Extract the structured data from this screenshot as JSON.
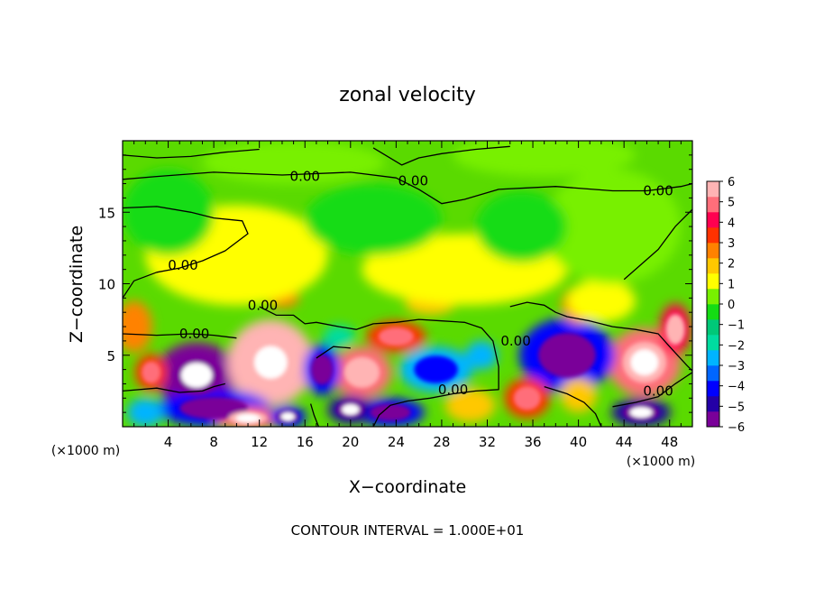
{
  "chart_data": {
    "type": "heatmap",
    "title": "zonal velocity",
    "xlabel": "X−coordinate",
    "ylabel": "Z−coordinate",
    "x_units_left": "(×1000 m)",
    "x_units_right": "(×1000 m)",
    "xlim": [
      0,
      50
    ],
    "ylim": [
      0,
      20
    ],
    "x_ticks": [
      4,
      8,
      12,
      16,
      20,
      24,
      28,
      32,
      36,
      40,
      44,
      48
    ],
    "x_tick_labels": [
      "4",
      "8",
      "12",
      "16",
      "20",
      "24",
      "28",
      "32",
      "36",
      "40",
      "44",
      "48"
    ],
    "y_ticks": [
      5,
      10,
      15
    ],
    "y_tick_labels": [
      "5",
      "10",
      "15"
    ],
    "colorbar": {
      "min": -6,
      "max": 6,
      "tick_labels": [
        "6",
        "5",
        "4",
        "3",
        "2",
        "1",
        "0",
        "−1",
        "−2",
        "−3",
        "−4",
        "−5",
        "−6"
      ],
      "tick_values": [
        6,
        5,
        4,
        3,
        2,
        1,
        0,
        -1,
        -2,
        -3,
        -4,
        -5,
        -6
      ],
      "colors": [
        "#7a0099",
        "#2400a6",
        "#0000ff",
        "#0066ff",
        "#00b4ff",
        "#00dca0",
        "#00c878",
        "#14dc14",
        "#78f000",
        "#ffff00",
        "#ffc800",
        "#ff8200",
        "#ff3200",
        "#ff0050",
        "#ff6e7a",
        "#ffb4b4"
      ]
    },
    "contour_labels": [
      {
        "text": "0.00",
        "x": 16.0,
        "y": 17.5
      },
      {
        "text": "0.00",
        "x": 25.5,
        "y": 17.2
      },
      {
        "text": "0.00",
        "x": 47.0,
        "y": 16.5
      },
      {
        "text": "0.00",
        "x": 5.3,
        "y": 11.3
      },
      {
        "text": "0.00",
        "x": 12.3,
        "y": 8.5
      },
      {
        "text": "0.00",
        "x": 6.3,
        "y": 6.5
      },
      {
        "text": "0.00",
        "x": 29.0,
        "y": 2.6
      },
      {
        "text": "0.00",
        "x": 47.0,
        "y": 2.5
      },
      {
        "text": "0.00",
        "x": 34.5,
        "y": 6.0
      }
    ],
    "anomalies": [
      {
        "x": 6.5,
        "y": 3.6,
        "rx": 3.6,
        "ry": 2.3,
        "v": -5.5,
        "core": true
      },
      {
        "x": 13.0,
        "y": 4.5,
        "rx": 3.8,
        "ry": 3.0,
        "v": 5.5,
        "core": true
      },
      {
        "x": 21.0,
        "y": 3.8,
        "rx": 2.6,
        "ry": 1.8,
        "v": 4.5
      },
      {
        "x": 27.5,
        "y": 4.0,
        "rx": 3.2,
        "ry": 1.6,
        "v": -3.0
      },
      {
        "x": 45.8,
        "y": 4.5,
        "rx": 3.2,
        "ry": 2.4,
        "v": 5.0,
        "core": true
      },
      {
        "x": 39.0,
        "y": 5.0,
        "rx": 4.2,
        "ry": 2.6,
        "v": -3.8
      },
      {
        "x": 40.0,
        "y": 8.5,
        "rx": 1.5,
        "ry": 1.3,
        "v": 2.8
      },
      {
        "x": 8.0,
        "y": 1.3,
        "rx": 5.0,
        "ry": 1.3,
        "v": -4.5
      },
      {
        "x": 2.5,
        "y": 3.8,
        "rx": 1.4,
        "ry": 1.3,
        "v": 3.6
      },
      {
        "x": 1.0,
        "y": 7.0,
        "rx": 1.6,
        "ry": 1.8,
        "v": 2.8
      },
      {
        "x": 17.5,
        "y": 4.0,
        "rx": 1.6,
        "ry": 1.8,
        "v": -4.0
      },
      {
        "x": 24.0,
        "y": 6.3,
        "rx": 2.6,
        "ry": 1.1,
        "v": 3.0
      },
      {
        "x": 14.0,
        "y": 9.0,
        "rx": 1.5,
        "ry": 0.7,
        "v": 2.4
      },
      {
        "x": 27.0,
        "y": 8.6,
        "rx": 2.2,
        "ry": 0.8,
        "v": 2.0
      },
      {
        "x": 35.5,
        "y": 2.0,
        "rx": 2.0,
        "ry": 1.4,
        "v": 3.2
      },
      {
        "x": 23.5,
        "y": 1.0,
        "rx": 3.0,
        "ry": 1.0,
        "v": -4.0
      },
      {
        "x": 45.5,
        "y": 1.0,
        "rx": 2.6,
        "ry": 1.0,
        "v": -5.2,
        "core": true
      },
      {
        "x": 30.5,
        "y": 1.5,
        "rx": 2.2,
        "ry": 1.2,
        "v": 1.6
      },
      {
        "x": 2.0,
        "y": 1.0,
        "rx": 1.6,
        "ry": 1.0,
        "v": -2.5
      },
      {
        "x": 48.5,
        "y": 6.8,
        "rx": 1.4,
        "ry": 1.8,
        "v": 4.0
      },
      {
        "x": 20.0,
        "y": 1.2,
        "rx": 2.0,
        "ry": 1.0,
        "v": -5.0,
        "core": true
      },
      {
        "x": 11.0,
        "y": 0.6,
        "rx": 2.8,
        "ry": 0.8,
        "v": 5.0,
        "core": true
      },
      {
        "x": 14.5,
        "y": 0.7,
        "rx": 1.6,
        "ry": 0.8,
        "v": -4.5,
        "core": true
      },
      {
        "x": 40.0,
        "y": 2.2,
        "rx": 1.6,
        "ry": 1.2,
        "v": 2.0
      },
      {
        "x": 19.0,
        "y": 6.3,
        "rx": 1.4,
        "ry": 0.8,
        "v": -2.2
      },
      {
        "x": 31.5,
        "y": 5.0,
        "rx": 1.4,
        "ry": 1.0,
        "v": -2.6
      },
      {
        "x": 42.0,
        "y": 8.8,
        "rx": 3.0,
        "ry": 1.5,
        "v": 1.2
      },
      {
        "x": 10.0,
        "y": 12.0,
        "rx": 8.0,
        "ry": 3.5,
        "v": 1.0
      },
      {
        "x": 30.0,
        "y": 11.0,
        "rx": 9.0,
        "ry": 2.5,
        "v": 0.8
      },
      {
        "x": 43.0,
        "y": 14.0,
        "rx": 6.0,
        "ry": 4.0,
        "v": 0.5
      },
      {
        "x": 15.0,
        "y": 18.5,
        "rx": 8.0,
        "ry": 1.5,
        "v": 0.6
      },
      {
        "x": 37.0,
        "y": 19.0,
        "rx": 8.0,
        "ry": 1.5,
        "v": 0.5
      },
      {
        "x": 4.0,
        "y": 15.0,
        "rx": 4.0,
        "ry": 3.0,
        "v": -0.4
      },
      {
        "x": 22.0,
        "y": 14.5,
        "rx": 6.0,
        "ry": 2.5,
        "v": -0.3
      },
      {
        "x": 35.0,
        "y": 14.0,
        "rx": 4.0,
        "ry": 2.5,
        "v": -0.5
      }
    ],
    "contour_paths": [
      [
        [
          0,
          17.3
        ],
        [
          3,
          17.5
        ],
        [
          8,
          17.8
        ],
        [
          14,
          17.6
        ],
        [
          20,
          17.8
        ],
        [
          24,
          17.4
        ],
        [
          26,
          16.6
        ],
        [
          28,
          15.6
        ],
        [
          30,
          15.9
        ],
        [
          33,
          16.6
        ],
        [
          38,
          16.8
        ],
        [
          43,
          16.5
        ],
        [
          46,
          16.5
        ],
        [
          49,
          16.8
        ],
        [
          50,
          17.0
        ]
      ],
      [
        [
          0,
          19.0
        ],
        [
          3,
          18.8
        ],
        [
          6,
          18.9
        ],
        [
          9,
          19.2
        ],
        [
          12,
          19.4
        ]
      ],
      [
        [
          22,
          19.5
        ],
        [
          24.5,
          18.3
        ],
        [
          26,
          18.8
        ],
        [
          28,
          19.1
        ],
        [
          31,
          19.4
        ],
        [
          34,
          19.6
        ]
      ],
      [
        [
          0,
          9.0
        ],
        [
          1,
          10.2
        ],
        [
          3,
          10.8
        ],
        [
          5,
          11.1
        ],
        [
          7,
          11.6
        ],
        [
          9,
          12.3
        ],
        [
          11,
          13.5
        ],
        [
          10.5,
          14.4
        ],
        [
          8,
          14.6
        ],
        [
          6,
          15.0
        ],
        [
          3,
          15.4
        ],
        [
          0,
          15.3
        ]
      ],
      [
        [
          44,
          10.3
        ],
        [
          47,
          12.4
        ],
        [
          48.5,
          14.0
        ],
        [
          50,
          15.2
        ]
      ],
      [
        [
          0,
          6.5
        ],
        [
          3,
          6.4
        ],
        [
          6,
          6.5
        ],
        [
          8,
          6.4
        ],
        [
          10,
          6.2
        ]
      ],
      [
        [
          0,
          2.5
        ],
        [
          3,
          2.7
        ],
        [
          5,
          2.4
        ],
        [
          7,
          2.5
        ],
        [
          8,
          2.8
        ],
        [
          9,
          3.0
        ]
      ],
      [
        [
          12,
          8.4
        ],
        [
          13.5,
          7.8
        ],
        [
          15,
          7.8
        ],
        [
          16,
          7.2
        ],
        [
          17,
          7.3
        ],
        [
          19,
          7.0
        ],
        [
          20.5,
          6.8
        ],
        [
          22,
          7.2
        ],
        [
          24,
          7.3
        ],
        [
          26,
          7.5
        ],
        [
          28,
          7.4
        ],
        [
          30,
          7.3
        ],
        [
          31.5,
          6.9
        ],
        [
          32.5,
          6.0
        ],
        [
          33,
          4.2
        ],
        [
          33,
          2.6
        ],
        [
          31,
          2.5
        ],
        [
          29,
          2.3
        ],
        [
          27,
          2.0
        ],
        [
          25,
          1.8
        ],
        [
          23.5,
          1.5
        ],
        [
          22.5,
          0.8
        ],
        [
          22,
          0.0
        ]
      ],
      [
        [
          17,
          4.8
        ],
        [
          18.5,
          5.6
        ],
        [
          20,
          5.5
        ]
      ],
      [
        [
          34,
          8.4
        ],
        [
          35.5,
          8.7
        ],
        [
          37,
          8.5
        ],
        [
          38,
          8.0
        ],
        [
          39,
          7.7
        ],
        [
          41,
          7.4
        ],
        [
          43,
          7.0
        ],
        [
          45,
          6.8
        ],
        [
          47,
          6.5
        ],
        [
          48,
          5.6
        ],
        [
          49.5,
          4.3
        ],
        [
          50,
          3.9
        ]
      ],
      [
        [
          37,
          2.8
        ],
        [
          39,
          2.3
        ],
        [
          40.5,
          1.7
        ],
        [
          41.5,
          0.9
        ],
        [
          42,
          0.0
        ]
      ],
      [
        [
          43,
          1.4
        ],
        [
          45,
          1.7
        ],
        [
          47,
          2.1
        ],
        [
          48.5,
          3.0
        ],
        [
          50,
          3.8
        ]
      ],
      [
        [
          16.5,
          1.6
        ],
        [
          16.8,
          0.8
        ],
        [
          17.2,
          0.0
        ]
      ]
    ]
  },
  "footer_text": "CONTOUR INTERVAL = 1.000E+01"
}
